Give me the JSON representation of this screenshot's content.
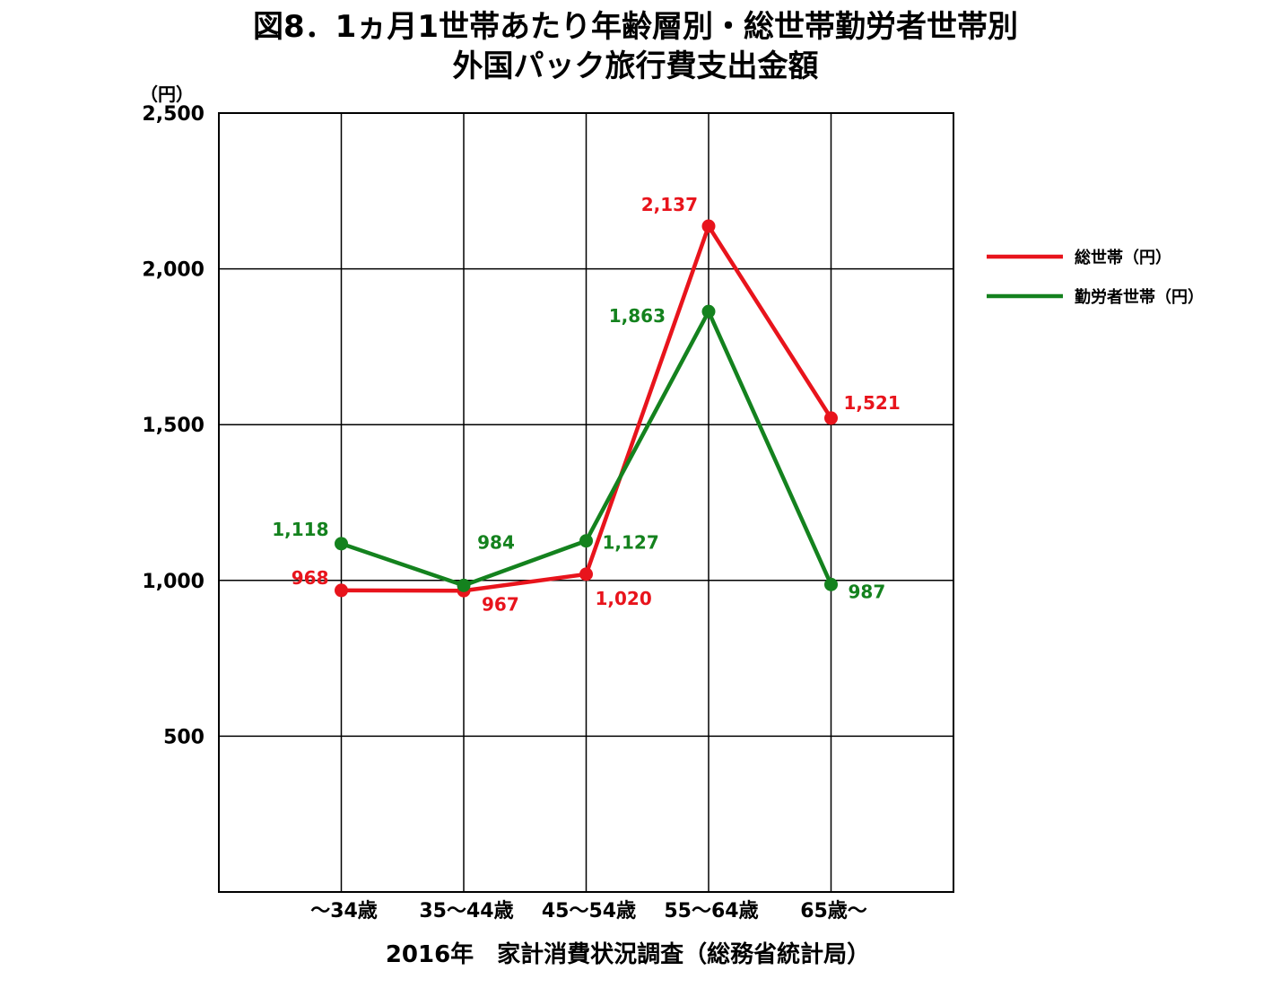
{
  "title_line1": "図8．1ヵ月1世帯あたり年齢層別・総世帯勤労者世帯別",
  "title_line2": "外国パック旅行費支出金額",
  "chart_data": {
    "type": "line",
    "title": "図8．1ヵ月1世帯あたり年齢層別・総世帯勤労者世帯別 外国パック旅行費支出金額",
    "y_unit": "（円）",
    "xlabel": "",
    "ylabel": "（円）",
    "ylim": [
      0,
      2500
    ],
    "yticks": [
      500,
      1000,
      1500,
      2000,
      2500
    ],
    "ytick_labels": [
      "500",
      "1,000",
      "1,500",
      "2,000",
      "2,500"
    ],
    "categories": [
      "～34歳",
      "35～44歳",
      "45～54歳",
      "55～64歳",
      "65歳～"
    ],
    "grid": true,
    "legend_position": "right",
    "series": [
      {
        "name": "総世帯（円）",
        "color": "#e8141c",
        "values": [
          968,
          967,
          1020,
          2137,
          1521
        ],
        "labels": [
          "968",
          "967",
          "1,020",
          "2,137",
          "1,521"
        ]
      },
      {
        "name": "勤労者世帯（円）",
        "color": "#14821e",
        "values": [
          1118,
          984,
          1127,
          1863,
          987
        ],
        "labels": [
          "1,118",
          "984",
          "1,127",
          "1,863",
          "987"
        ]
      }
    ],
    "source": "2016年　家計消費状況調査（総務省統計局）"
  }
}
